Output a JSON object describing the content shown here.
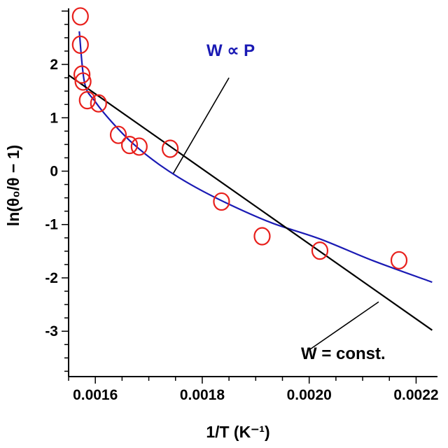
{
  "chart_data": {
    "type": "scatter",
    "xlabel": "1/T (K⁻¹)",
    "ylabel": "ln(θ₀/θ − 1)",
    "xlim": [
      0.00155,
      0.00224
    ],
    "ylim": [
      -3.85,
      3.05
    ],
    "x_ticks": [
      0.0016,
      0.0018,
      0.002,
      0.0022
    ],
    "x_tick_labels": [
      "0.0016",
      "0.0018",
      "0.0020",
      "0.0022"
    ],
    "y_ticks": [
      -3,
      -2,
      -1,
      0,
      1,
      2
    ],
    "y_tick_labels": [
      "-3",
      "-2",
      "-1",
      "0",
      "1",
      "2"
    ],
    "grid": false,
    "series": [
      {
        "kind": "scatter",
        "marker": "open-circle",
        "color": "#e8201c",
        "x": [
          0.001572,
          0.001572,
          0.001575,
          0.001577,
          0.001585,
          0.001606,
          0.001643,
          0.001664,
          0.001682,
          0.00174,
          0.001836,
          0.001912,
          0.00202,
          0.002168
        ],
        "y": [
          2.9,
          2.37,
          1.81,
          1.68,
          1.33,
          1.27,
          0.68,
          0.49,
          0.46,
          0.42,
          -0.57,
          -1.22,
          -1.49,
          -1.67
        ]
      },
      {
        "kind": "line",
        "color": "#1a1ab4",
        "x": [
          0.00157,
          0.00158,
          0.0016,
          0.00163,
          0.00167,
          0.00172,
          0.00178,
          0.00185,
          0.00193,
          0.00202,
          0.00212,
          0.00223
        ],
        "y": [
          2.62,
          1.65,
          1.3,
          0.93,
          0.52,
          0.12,
          -0.26,
          -0.62,
          -0.97,
          -1.27,
          -1.68,
          -2.08
        ]
      },
      {
        "kind": "line",
        "color": "#000000",
        "x": [
          0.00155,
          0.00223
        ],
        "y": [
          1.8,
          -2.98
        ]
      }
    ],
    "annotations": [
      {
        "text": "W ∝ P",
        "color": "#1a1ab4",
        "pointer_from": [
          0.00185,
          1.75
        ],
        "pointer_to": [
          0.001746,
          -0.04
        ]
      },
      {
        "text": "W = const.",
        "color": "#000000",
        "pointer_from": [
          0.002,
          -3.35
        ],
        "pointer_to": [
          0.00213,
          -2.45
        ]
      }
    ]
  }
}
